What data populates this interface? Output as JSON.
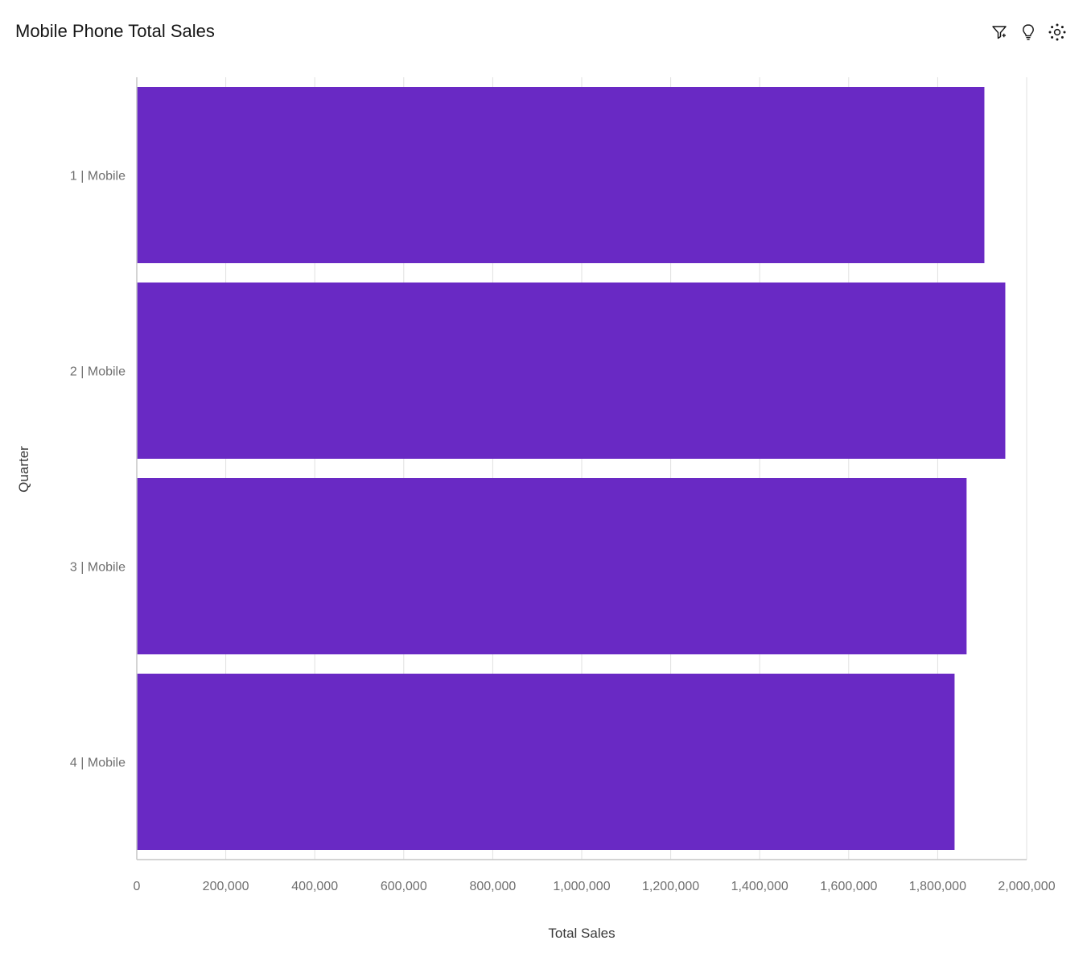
{
  "header": {
    "title": "Mobile Phone Total Sales",
    "actions": [
      {
        "icon": "filter-icon"
      },
      {
        "icon": "insight-bulb-icon"
      },
      {
        "icon": "ai-assistant-icon"
      }
    ]
  },
  "colors": {
    "bar": "#6929c4",
    "grid": "#e0e0e0",
    "axis": "#c6c6c6"
  },
  "chart_data": {
    "type": "bar",
    "orientation": "horizontal",
    "title": "",
    "categories": [
      "1 | Mobile",
      "2 | Mobile",
      "3 | Mobile",
      "4 | Mobile"
    ],
    "values": [
      1905000,
      1952000,
      1865000,
      1838000
    ],
    "xlabel": "Total Sales",
    "ylabel": "Quarter",
    "xlim": [
      0,
      2000000
    ],
    "x_ticks": [
      "0",
      "200,000",
      "400,000",
      "600,000",
      "800,000",
      "1,000,000",
      "1,200,000",
      "1,400,000",
      "1,600,000",
      "1,800,000",
      "2,000,000"
    ],
    "grid": true,
    "legend": "none"
  }
}
